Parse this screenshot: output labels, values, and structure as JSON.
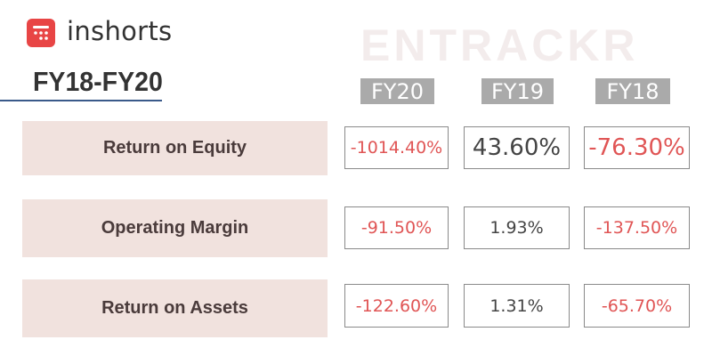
{
  "header": {
    "brand": "inshorts",
    "watermark": "ENTRACKR",
    "title": "FY18-FY20"
  },
  "table": {
    "columns": [
      "FY20",
      "FY19",
      "FY18"
    ],
    "rows": [
      {
        "label": "Return on Equity",
        "values": [
          "-1014.40%",
          "43.60%",
          "-76.30%"
        ]
      },
      {
        "label": "Operating Margin",
        "values": [
          "-91.50%",
          "1.93%",
          "-137.50%"
        ]
      },
      {
        "label": "Return on Assets",
        "values": [
          "-122.60%",
          "1.31%",
          "-65.70%"
        ]
      }
    ]
  }
}
